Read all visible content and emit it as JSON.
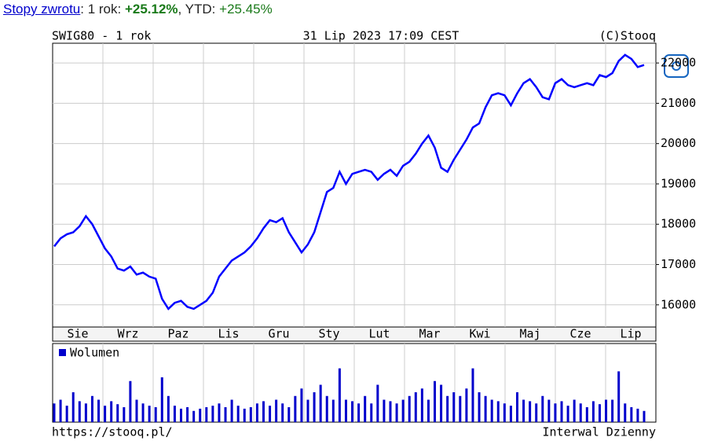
{
  "header": {
    "link": "Stopy zwrotu",
    "sep1": ": 1 rok: ",
    "period_return": "+25.12%",
    "sep2": ", YTD: ",
    "ytd_return": "+25.45%"
  },
  "chart_data": {
    "type": "line",
    "title": "SWIG80 - 1 rok",
    "date": "31 Lip 2023 17:09 CEST",
    "source": "(C)Stooq",
    "footer_left": "https://stooq.pl/",
    "footer_right": "Interwal Dzienny",
    "months": [
      "Sie",
      "Wrz",
      "Paz",
      "Lis",
      "Gru",
      "Sty",
      "Lut",
      "Mar",
      "Kwi",
      "Maj",
      "Cze",
      "Lip"
    ],
    "color": "#0000ff",
    "values": [
      17450,
      17650,
      17750,
      17800,
      17950,
      18200,
      18000,
      17700,
      17400,
      17200,
      16900,
      16850,
      16950,
      16750,
      16800,
      16700,
      16650,
      16150,
      15900,
      16050,
      16100,
      15950,
      15900,
      16000,
      16100,
      16300,
      16700,
      16900,
      17100,
      17200,
      17300,
      17450,
      17650,
      17900,
      18100,
      18050,
      18150,
      17800,
      17550,
      17300,
      17500,
      17800,
      18300,
      18800,
      18900,
      19300,
      19000,
      19250,
      19300,
      19350,
      19300,
      19100,
      19250,
      19350,
      19200,
      19450,
      19550,
      19750,
      20000,
      20200,
      19900,
      19400,
      19300,
      19600,
      19850,
      20100,
      20400,
      20500,
      20900,
      21200,
      21250,
      21200,
      20950,
      21250,
      21500,
      21600,
      21400,
      21150,
      21100,
      21500,
      21600,
      21450,
      21400,
      21450,
      21500,
      21450,
      21700,
      21650,
      21750,
      22050,
      22200,
      22100,
      21900,
      21950
    ],
    "ylim": [
      15450,
      22490
    ],
    "yticks": [
      16000,
      17000,
      18000,
      19000,
      20000,
      21000,
      22000
    ],
    "grid": true,
    "volume": {
      "name": "Wolumen",
      "color": "#0000cc",
      "ylim": [
        0,
        100
      ],
      "values": [
        25,
        30,
        22,
        40,
        28,
        25,
        35,
        30,
        22,
        28,
        24,
        20,
        55,
        30,
        25,
        22,
        20,
        60,
        35,
        22,
        18,
        20,
        15,
        18,
        20,
        22,
        25,
        20,
        30,
        22,
        18,
        20,
        25,
        28,
        22,
        30,
        25,
        20,
        35,
        45,
        30,
        40,
        50,
        35,
        30,
        72,
        30,
        28,
        25,
        35,
        25,
        50,
        30,
        28,
        25,
        30,
        35,
        40,
        45,
        30,
        55,
        50,
        35,
        40,
        35,
        45,
        72,
        40,
        35,
        30,
        28,
        25,
        22,
        40,
        30,
        28,
        25,
        35,
        30,
        25,
        28,
        22,
        30,
        25,
        20,
        28,
        24,
        30,
        30,
        68,
        25,
        20,
        18,
        15
      ]
    }
  }
}
